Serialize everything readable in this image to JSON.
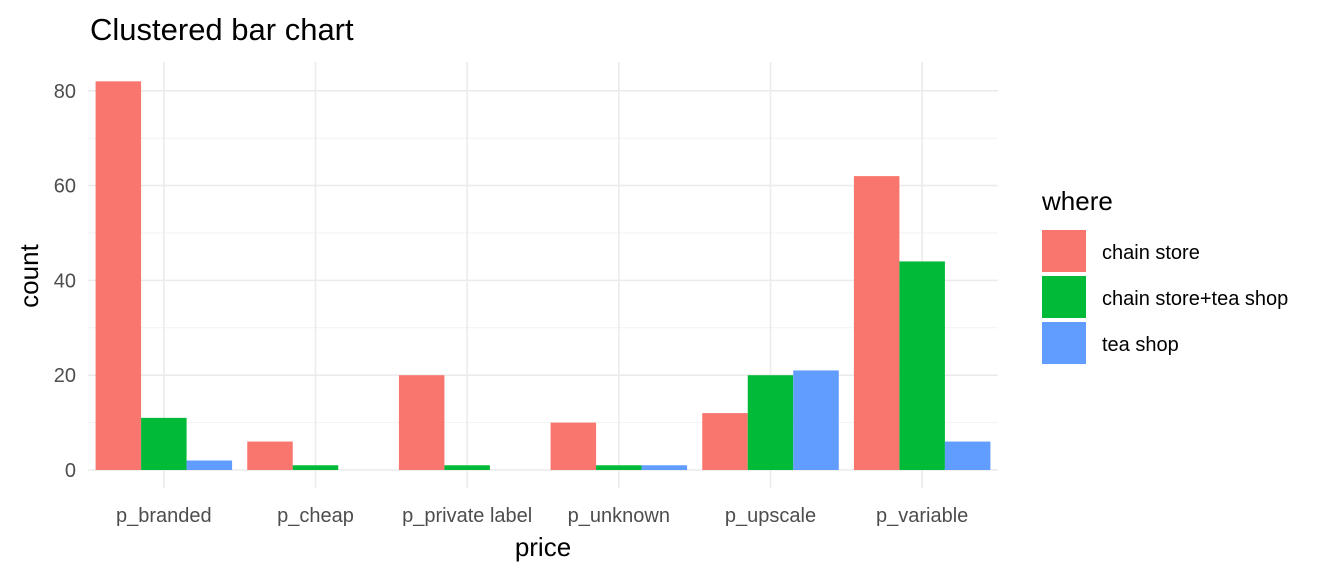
{
  "chart_data": {
    "type": "bar",
    "title": "Clustered bar chart",
    "xlabel": "price",
    "ylabel": "count",
    "categories": [
      "p_branded",
      "p_cheap",
      "p_private label",
      "p_unknown",
      "p_upscale",
      "p_variable"
    ],
    "legend_title": "where",
    "legend_position": "right",
    "grid": true,
    "ylim": [
      0,
      86
    ],
    "yticks": [
      0,
      20,
      40,
      60,
      80
    ],
    "series": [
      {
        "name": "chain store",
        "color": "#F8766D",
        "values": [
          82,
          6,
          20,
          10,
          12,
          62
        ]
      },
      {
        "name": "chain store+tea shop",
        "color": "#00BA38",
        "values": [
          11,
          1,
          1,
          1,
          20,
          44
        ]
      },
      {
        "name": "tea shop",
        "color": "#619CFF",
        "values": [
          2,
          0,
          0,
          1,
          21,
          6
        ]
      }
    ]
  }
}
